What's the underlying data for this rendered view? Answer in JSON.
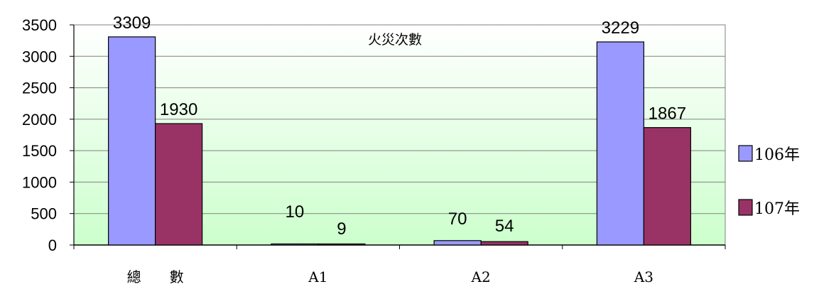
{
  "chart_data": {
    "type": "bar",
    "title": "火災次數",
    "categories": [
      "總　　數",
      "A1",
      "A2",
      "A3"
    ],
    "series": [
      {
        "name": "106年",
        "values": [
          3309,
          10,
          70,
          3229
        ],
        "color": "#9999ff"
      },
      {
        "name": "107年",
        "values": [
          1930,
          9,
          54,
          1867
        ],
        "color": "#993366"
      }
    ],
    "ylim": [
      0,
      3500
    ],
    "yticks": [
      0,
      500,
      1000,
      1500,
      2000,
      2500,
      3000,
      3500
    ],
    "grid": true,
    "legend": "right",
    "plot_background": [
      "#ffffff",
      "#ccffcc"
    ]
  }
}
